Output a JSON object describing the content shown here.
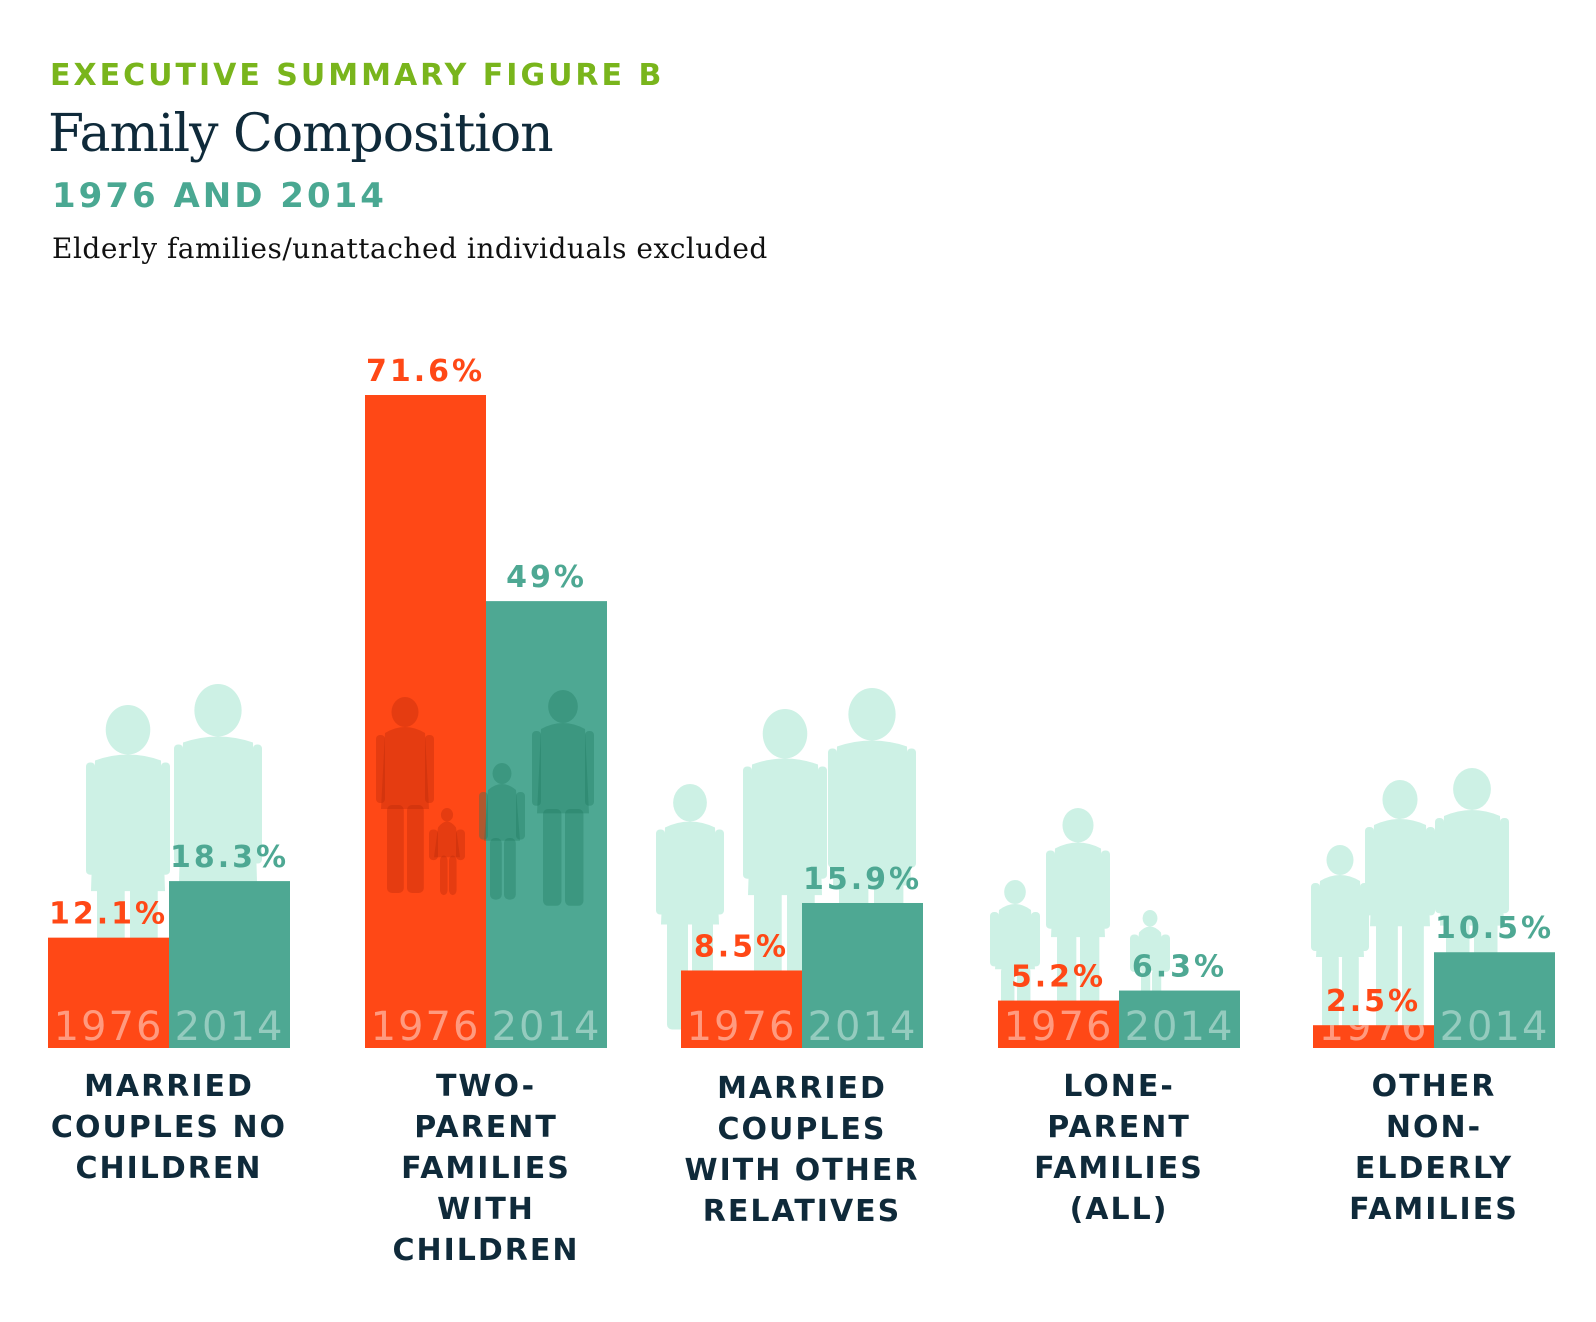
{
  "header": {
    "eyebrow": "EXECUTIVE SUMMARY FIGURE B",
    "title": "Family Composition",
    "subtitle": "1976 AND 2014",
    "note": "Elderly families/unattached individuals excluded"
  },
  "colors": {
    "series_1976": "#ff4816",
    "series_2014": "#4ea893",
    "silhouette": "#cdf1e5",
    "label_text": "#0f2a3a",
    "eyebrow": "#79b51c"
  },
  "chart_data": {
    "type": "bar",
    "title": "Family Composition",
    "subtitle": "1976 AND 2014",
    "xlabel": "",
    "ylabel": "",
    "ylim": [
      0,
      80
    ],
    "grid": false,
    "legend": "in-bar year labels",
    "categories": [
      "MARRIED COUPLES NO CHILDREN",
      "TWO-PARENT FAMILIES WITH CHILDREN",
      "MARRIED COUPLES WITH OTHER RELATIVES",
      "LONE-PARENT FAMILIES (ALL)",
      "OTHER NON-ELDERLY FAMILIES"
    ],
    "category_labels_wrapped": [
      "MARRIED\nCOUPLES NO\nCHILDREN",
      "TWO-\nPARENT\nFAMILIES\nWITH\nCHILDREN",
      "MARRIED\nCOUPLES\nWITH OTHER\nRELATIVES",
      "LONE-\nPARENT\nFAMILIES\n(ALL)",
      "OTHER\nNON-\nELDERLY\nFAMILIES"
    ],
    "series": [
      {
        "name": "1976",
        "values": [
          12.1,
          71.6,
          8.5,
          5.2,
          2.5
        ],
        "labels": [
          "12.1%",
          "71.6%",
          "8.5%",
          "5.2%",
          "2.5%"
        ]
      },
      {
        "name": "2014",
        "values": [
          18.3,
          49,
          15.9,
          6.3,
          10.5
        ],
        "labels": [
          "18.3%",
          "49%",
          "15.9%",
          "6.3%",
          "10.5%"
        ]
      }
    ]
  }
}
